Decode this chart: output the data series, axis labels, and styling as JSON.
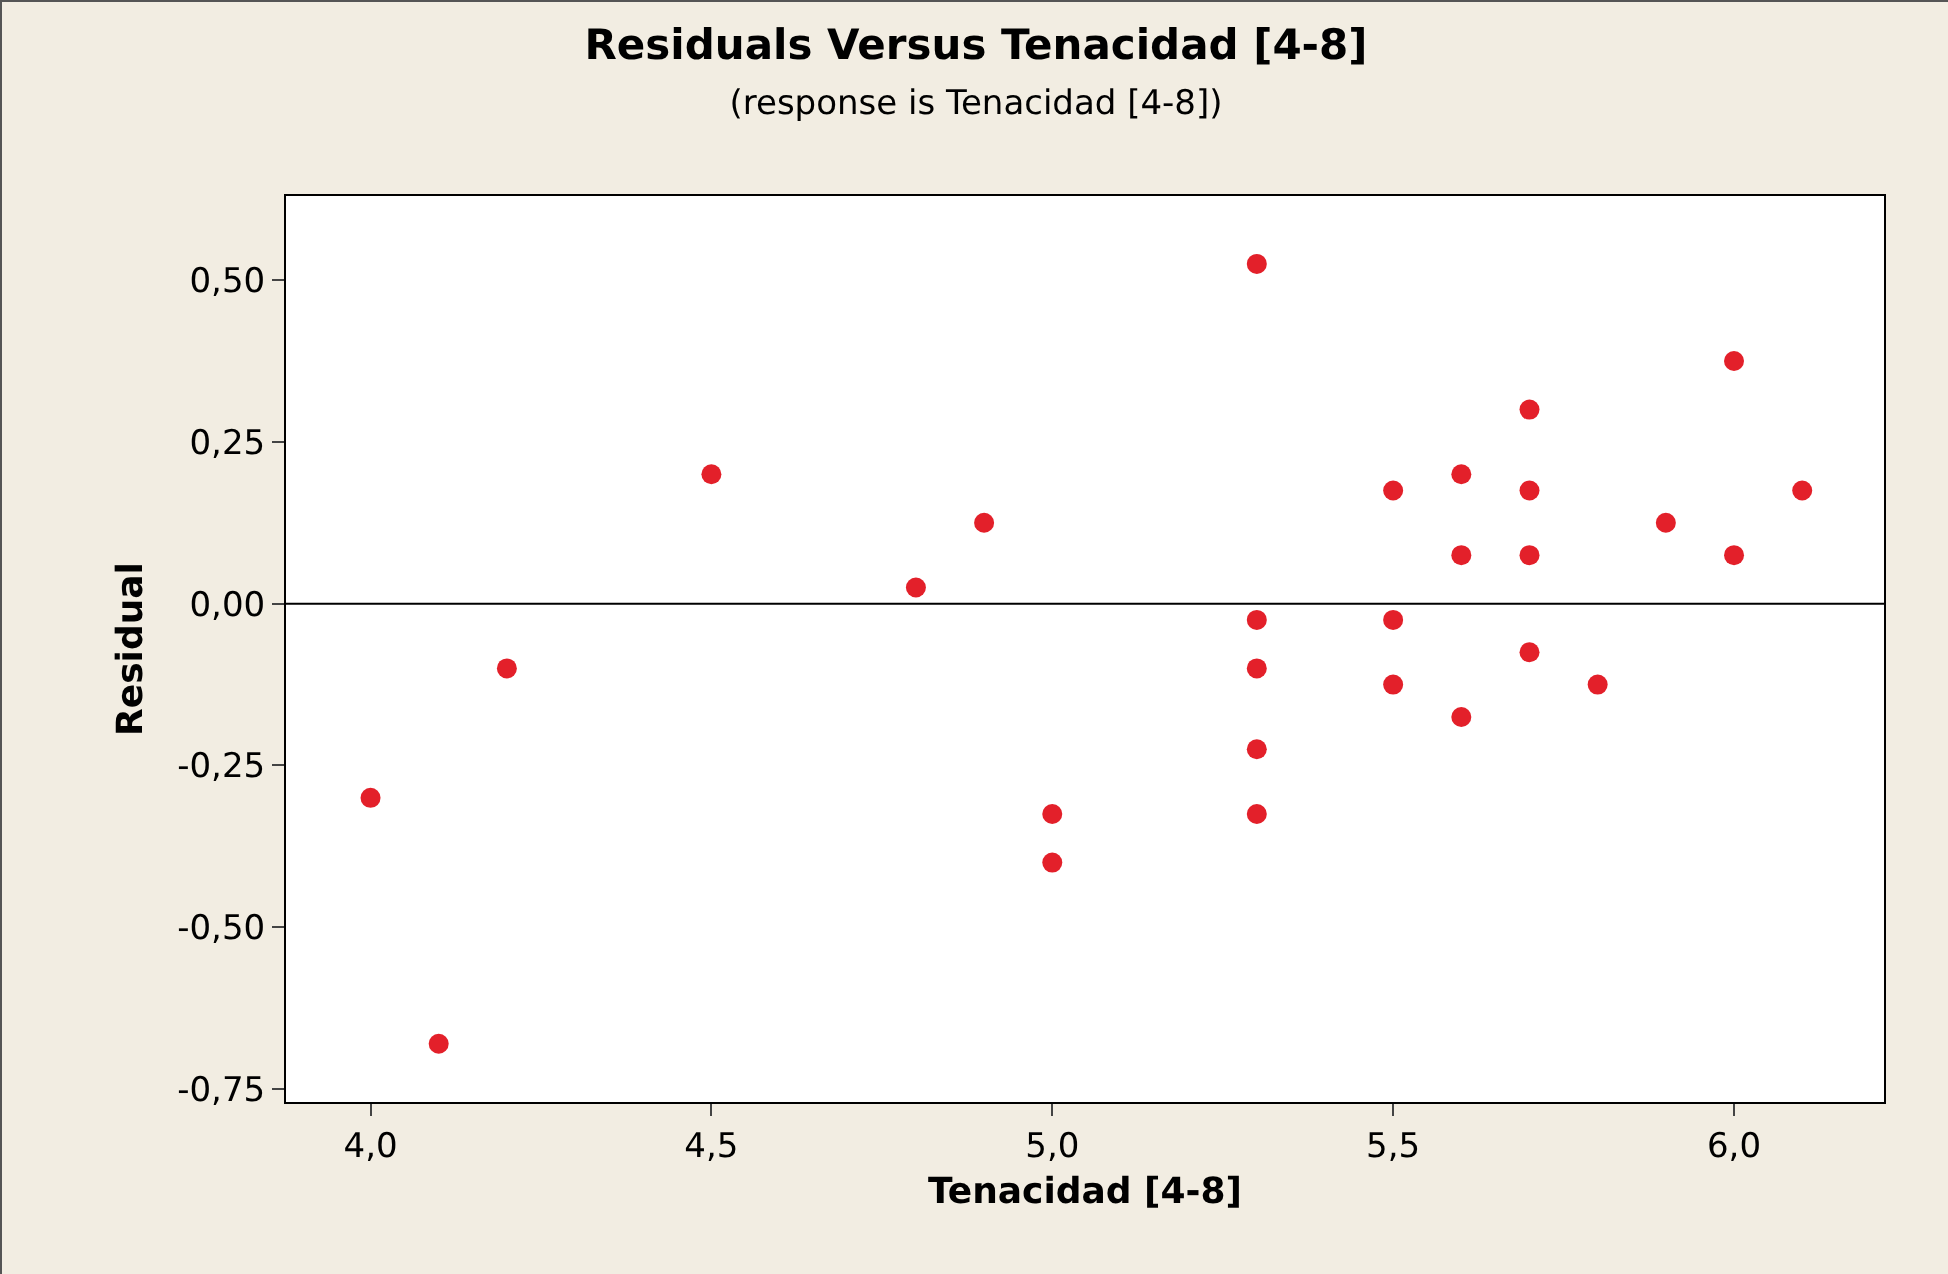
{
  "chart_data": {
    "type": "scatter",
    "title": "Residuals Versus Tenacidad [4-8]",
    "subtitle": "(response is Tenacidad [4-8])",
    "xlabel": "Tenacidad [4-8]",
    "ylabel": "Residual",
    "x": [
      4.0,
      4.1,
      4.2,
      4.5,
      4.8,
      4.9,
      5.0,
      5.0,
      5.3,
      5.3,
      5.3,
      5.3,
      5.3,
      5.5,
      5.5,
      5.5,
      5.6,
      5.6,
      5.6,
      5.7,
      5.7,
      5.7,
      5.7,
      5.8,
      5.9,
      6.0,
      6.0,
      6.1
    ],
    "series": [
      {
        "color": "#e3202a",
        "values": [
          -0.3,
          -0.68,
          -0.1,
          0.2,
          0.025,
          0.125,
          -0.325,
          -0.4,
          0.525,
          -0.025,
          -0.1,
          -0.225,
          -0.325,
          0.175,
          -0.025,
          -0.125,
          0.2,
          0.075,
          -0.175,
          0.3,
          0.175,
          0.075,
          -0.075,
          -0.125,
          0.125,
          0.375,
          0.075,
          0.175
        ]
      }
    ],
    "marker": "circle",
    "grid": false,
    "xlim": [
      3.876,
      6.22
    ],
    "ylim": [
      -0.77,
      0.63
    ],
    "xticks": [
      {
        "value": 4,
        "label": "4,0"
      },
      {
        "value": 4.5,
        "label": "4,5"
      },
      {
        "value": 5,
        "label": "5,0"
      },
      {
        "value": 5.5,
        "label": "5,5"
      },
      {
        "value": 6,
        "label": "6,0"
      }
    ],
    "yticks": [
      {
        "value": -0.75,
        "label": "-0,75"
      },
      {
        "value": -0.5,
        "label": "-0,50"
      },
      {
        "value": -0.25,
        "label": "-0,25"
      },
      {
        "value": 0,
        "label": "0,00"
      },
      {
        "value": 0.25,
        "label": "0,25"
      },
      {
        "value": 0.5,
        "label": "0,50"
      }
    ],
    "ref_lines": [
      {
        "axis": "y",
        "value": 0,
        "color": "#000000"
      }
    ]
  }
}
